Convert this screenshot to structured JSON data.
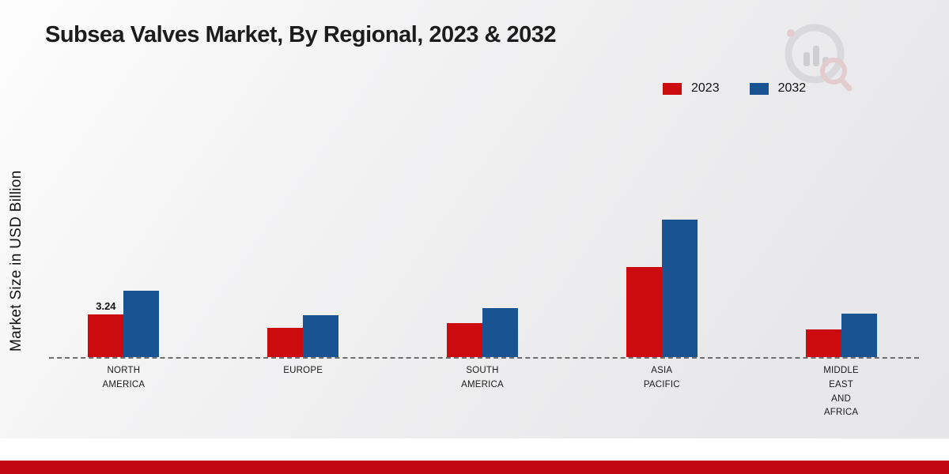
{
  "title": "Subsea Valves Market, By Regional, 2023 & 2032",
  "colors": {
    "accent_red": "#c00712",
    "bar_2023": "#cc0b0f",
    "bar_2032": "#1a5391",
    "baseline_gray": "#6e6e6e"
  },
  "chart_data": {
    "type": "bar",
    "title": "Subsea Valves Market, By Regional, 2023 & 2032",
    "ylabel": "Market Size in USD Billion",
    "xlabel": "",
    "categories": [
      "NORTH AMERICA",
      "EUROPE",
      "SOUTH AMERICA",
      "ASIA PACIFIC",
      "MIDDLE EAST AND AFRICA"
    ],
    "series": [
      {
        "name": "2023",
        "color": "#cc0b0f",
        "values": [
          3.24,
          2.2,
          2.6,
          6.8,
          2.1
        ]
      },
      {
        "name": "2032",
        "color": "#1a5391",
        "values": [
          5.0,
          3.2,
          3.7,
          10.4,
          3.3
        ]
      }
    ],
    "annotations": [
      {
        "category_index": 0,
        "series_index": 0,
        "text": "3.24"
      }
    ],
    "legend_position": "top-right",
    "grid": false,
    "baseline_style": "dashed",
    "ylim": [
      0,
      11
    ]
  }
}
